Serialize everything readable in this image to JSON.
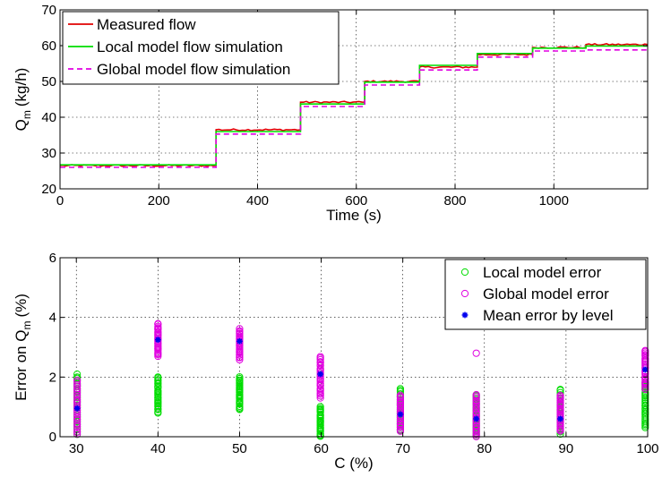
{
  "figure": {
    "background": "#ffffff"
  },
  "chart_data": [
    {
      "type": "line",
      "xlabel": "Time (s)",
      "ylabel_main": "Q",
      "ylabel_sub": "m",
      "ylabel_unit": "(kg/h)",
      "xlim": [
        0,
        1190
      ],
      "ylim": [
        20,
        70
      ],
      "xticks": [
        0,
        200,
        400,
        600,
        800,
        1000
      ],
      "yticks": [
        20,
        30,
        40,
        50,
        60,
        70
      ],
      "grid": true,
      "legend_position": "top-left",
      "series": [
        {
          "name": "Measured flow",
          "color": "#e00000",
          "style": "solid",
          "steps": [
            [
              0,
              26.5
            ],
            [
              316,
              36.5
            ],
            [
              487,
              44.2
            ],
            [
              617,
              50.0
            ],
            [
              728,
              54.0
            ],
            [
              845,
              57.5
            ],
            [
              957,
              59.5
            ],
            [
              1065,
              60.3
            ],
            [
              1190,
              60.3
            ]
          ]
        },
        {
          "name": "Local model flow simulation",
          "color": "#00dd00",
          "style": "solid",
          "steps": [
            [
              0,
              26.7
            ],
            [
              316,
              36.0
            ],
            [
              487,
              43.7
            ],
            [
              617,
              49.8
            ],
            [
              728,
              54.5
            ],
            [
              845,
              57.8
            ],
            [
              957,
              59.3
            ],
            [
              1065,
              59.9
            ],
            [
              1190,
              59.9
            ]
          ]
        },
        {
          "name": "Global model flow simulation",
          "color": "#e000e0",
          "style": "dashed",
          "steps": [
            [
              0,
              26.0
            ],
            [
              316,
              35.3
            ],
            [
              487,
              43.0
            ],
            [
              617,
              49.0
            ],
            [
              728,
              53.2
            ],
            [
              845,
              56.8
            ],
            [
              957,
              58.5
            ],
            [
              1065,
              58.8
            ],
            [
              1190,
              58.8
            ]
          ]
        }
      ]
    },
    {
      "type": "scatter",
      "xlabel": "C (%)",
      "ylabel_main": "Error on Q",
      "ylabel_sub": "m",
      "ylabel_unit": "(%)",
      "xlim": [
        28,
        100
      ],
      "ylim": [
        0,
        6
      ],
      "xticks": [
        30,
        40,
        50,
        60,
        70,
        80,
        90,
        100
      ],
      "yticks": [
        0,
        2,
        4,
        6
      ],
      "grid": true,
      "legend_position": "top-right",
      "levels": [
        30,
        40,
        50,
        60,
        70,
        80,
        90,
        100
      ],
      "x_positions": [
        30.1,
        40.0,
        50.0,
        59.9,
        69.7,
        79.0,
        89.3,
        99.7
      ],
      "series": [
        {
          "name": "Local model error",
          "color": "#00dd00",
          "marker": "circle",
          "ranges": [
            [
              0.1,
              2.1
            ],
            [
              0.8,
              2.0
            ],
            [
              0.9,
              2.0
            ],
            [
              0.0,
              1.0
            ],
            [
              0.2,
              1.6
            ],
            [
              0.0,
              1.4
            ],
            [
              0.1,
              1.6
            ],
            [
              0.3,
              1.8
            ]
          ]
        },
        {
          "name": "Global model error",
          "color": "#e000e0",
          "marker": "circle",
          "ranges": [
            [
              0.1,
              1.9
            ],
            [
              2.7,
              3.8
            ],
            [
              2.6,
              3.6
            ],
            [
              1.3,
              2.7
            ],
            [
              0.2,
              1.4
            ],
            [
              0.0,
              1.4
            ],
            [
              0.2,
              1.4
            ],
            [
              1.6,
              2.9
            ]
          ],
          "outliers": [
            [
              79.0,
              2.8
            ]
          ]
        },
        {
          "name": "Mean error by level",
          "color": "#0000ee",
          "marker": "star",
          "values": [
            0.95,
            3.25,
            3.2,
            2.1,
            0.75,
            0.6,
            0.6,
            2.25
          ]
        }
      ]
    }
  ]
}
